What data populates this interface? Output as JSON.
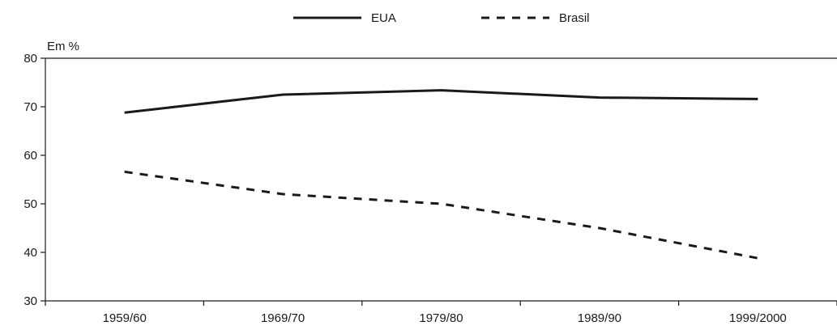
{
  "chart_data": {
    "type": "line",
    "categories": [
      "1959/60",
      "1969/70",
      "1979/80",
      "1989/90",
      "1999/2000"
    ],
    "series": [
      {
        "name": "EUA",
        "values": [
          68.8,
          72.5,
          73.4,
          71.9,
          71.6
        ],
        "style": "solid",
        "color": "#1a1a1a"
      },
      {
        "name": "Brasil",
        "values": [
          56.6,
          52.0,
          50.0,
          45.0,
          38.8
        ],
        "style": "dashed",
        "color": "#1a1a1a"
      }
    ],
    "ylabel": "Em %",
    "ylim": [
      30,
      80
    ],
    "yticks": [
      30,
      40,
      50,
      60,
      70,
      80
    ],
    "grid": false,
    "legend": "top-center"
  }
}
